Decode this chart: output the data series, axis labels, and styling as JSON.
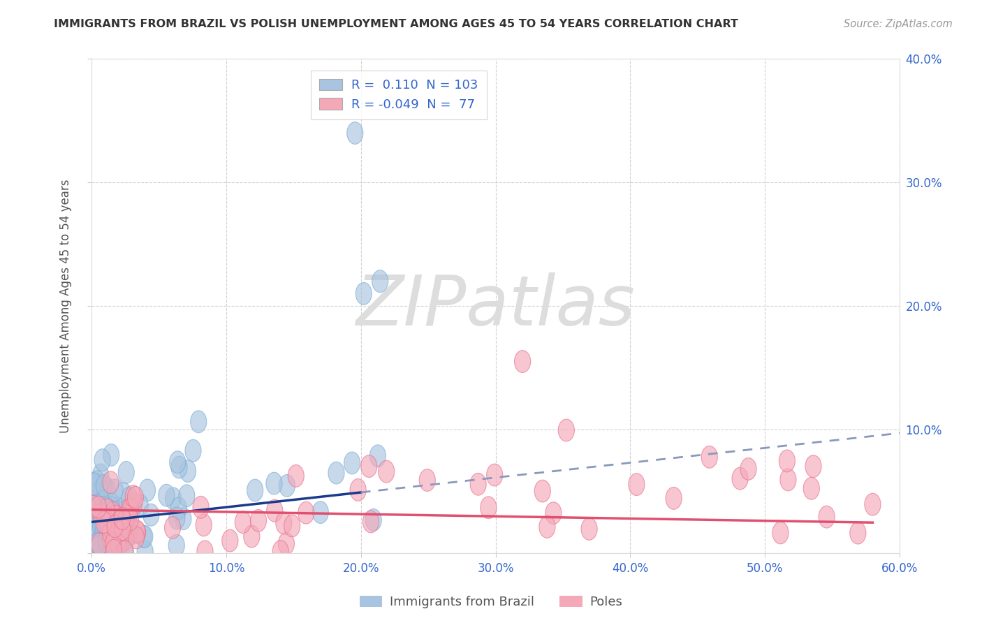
{
  "title": "IMMIGRANTS FROM BRAZIL VS POLISH UNEMPLOYMENT AMONG AGES 45 TO 54 YEARS CORRELATION CHART",
  "source": "Source: ZipAtlas.com",
  "ylabel": "Unemployment Among Ages 45 to 54 years",
  "xlim": [
    0.0,
    0.6
  ],
  "ylim": [
    0.0,
    0.4
  ],
  "brazil_R": 0.11,
  "brazil_N": 103,
  "poles_R": -0.049,
  "poles_N": 77,
  "brazil_color": "#a8c4e0",
  "brazil_edge_color": "#7aadd4",
  "poles_color": "#f4a8b8",
  "poles_edge_color": "#e87090",
  "brazil_line_color": "#1a3a8a",
  "poles_line_color": "#e05070",
  "dashed_line_color": "#8899bb",
  "background_color": "#ffffff",
  "grid_color": "#cccccc",
  "tick_color": "#3366cc",
  "ylabel_color": "#555555",
  "title_color": "#333333",
  "source_color": "#999999",
  "legend_text_color": "#3366cc",
  "watermark_color": "#dddddd",
  "bottom_legend_color": "#555555",
  "figsize": [
    14.06,
    8.92
  ]
}
